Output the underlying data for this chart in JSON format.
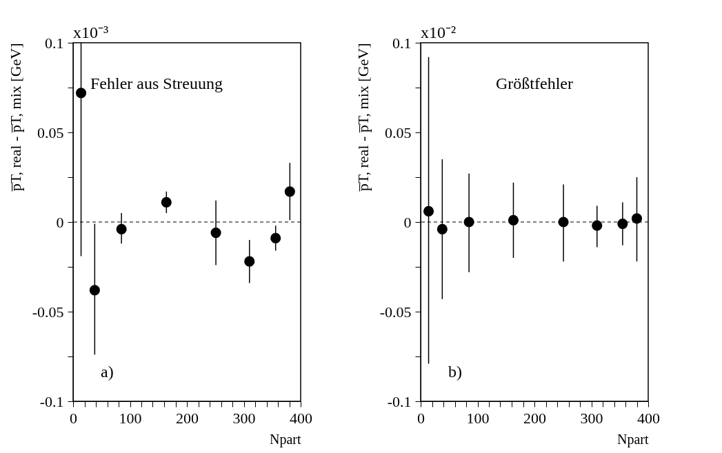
{
  "chart_data": [
    {
      "type": "scatter",
      "xlabel": "Npart",
      "ylabel": "p̅T, real - p̅T, mix [GeV]",
      "annotations": [
        "x10⁻³",
        "Fehler aus Streuung",
        "a)"
      ],
      "x": [
        14,
        38,
        85,
        164,
        251,
        310,
        356,
        381
      ],
      "series": [
        {
          "color": "#000000",
          "values": [
            0.072,
            -0.038,
            -0.004,
            0.011,
            -0.006,
            -0.022,
            -0.009,
            0.017
          ],
          "errors": [
            [
              -0.019,
              0.1
            ],
            [
              -0.074,
              -0.001
            ],
            [
              -0.012,
              0.005
            ],
            [
              0.005,
              0.017
            ],
            [
              -0.024,
              0.012
            ],
            [
              -0.034,
              -0.01
            ],
            [
              -0.016,
              -0.002
            ],
            [
              0.001,
              0.033
            ]
          ]
        }
      ],
      "xlim": [
        0,
        400
      ],
      "ylim": [
        -0.1,
        0.1
      ],
      "xticks": [
        0,
        {
          "value": 20,
          "label": null
        },
        {
          "value": 40,
          "label": null
        },
        {
          "value": 60,
          "label": null
        },
        {
          "value": 80,
          "label": null
        },
        100,
        {
          "value": 120,
          "label": null
        },
        {
          "value": 140,
          "label": null
        },
        {
          "value": 160,
          "label": null
        },
        {
          "value": 180,
          "label": null
        },
        200,
        {
          "value": 220,
          "label": null
        },
        {
          "value": 240,
          "label": null
        },
        {
          "value": 260,
          "label": null
        },
        {
          "value": 280,
          "label": null
        },
        300,
        {
          "value": 320,
          "label": null
        },
        {
          "value": 340,
          "label": null
        },
        {
          "value": 360,
          "label": null
        },
        {
          "value": 380,
          "label": null
        },
        400
      ],
      "yticks": [
        -0.1,
        {
          "value": -0.075,
          "label": null
        },
        -0.05,
        {
          "value": -0.025,
          "label": null
        },
        0,
        {
          "value": 0.025,
          "label": null
        },
        0.05,
        {
          "value": 0.075,
          "label": null
        },
        0.1
      ],
      "ref_lines": [
        {
          "axis": "y",
          "value": 0,
          "line_style": "dashed",
          "color": "#000000"
        }
      ],
      "marker": "circle",
      "grid": false
    },
    {
      "type": "scatter",
      "xlabel": "Npart",
      "ylabel": "p̅T, real - p̅T, mix [GeV]",
      "annotations": [
        "x10⁻²",
        "Größtfehler",
        "b)"
      ],
      "x": [
        14,
        38,
        85,
        163,
        251,
        310,
        355,
        380
      ],
      "series": [
        {
          "color": "#000000",
          "values": [
            0.006,
            -0.004,
            0.0,
            0.001,
            0.0,
            -0.002,
            -0.001,
            0.002
          ],
          "errors": [
            [
              -0.079,
              0.092
            ],
            [
              -0.043,
              0.035
            ],
            [
              -0.028,
              0.027
            ],
            [
              -0.02,
              0.022
            ],
            [
              -0.022,
              0.021
            ],
            [
              -0.014,
              0.009
            ],
            [
              -0.013,
              0.011
            ],
            [
              -0.022,
              0.025
            ]
          ]
        }
      ],
      "xlim": [
        0,
        400
      ],
      "ylim": [
        -0.1,
        0.1
      ],
      "xticks": [
        0,
        {
          "value": 20,
          "label": null
        },
        {
          "value": 40,
          "label": null
        },
        {
          "value": 60,
          "label": null
        },
        {
          "value": 80,
          "label": null
        },
        100,
        {
          "value": 120,
          "label": null
        },
        {
          "value": 140,
          "label": null
        },
        {
          "value": 160,
          "label": null
        },
        {
          "value": 180,
          "label": null
        },
        200,
        {
          "value": 220,
          "label": null
        },
        {
          "value": 240,
          "label": null
        },
        {
          "value": 260,
          "label": null
        },
        {
          "value": 280,
          "label": null
        },
        300,
        {
          "value": 320,
          "label": null
        },
        {
          "value": 340,
          "label": null
        },
        {
          "value": 360,
          "label": null
        },
        {
          "value": 380,
          "label": null
        },
        400
      ],
      "yticks": [
        -0.1,
        {
          "value": -0.075,
          "label": null
        },
        -0.05,
        {
          "value": -0.025,
          "label": null
        },
        0,
        {
          "value": 0.025,
          "label": null
        },
        0.05,
        {
          "value": 0.075,
          "label": null
        },
        0.1
      ],
      "ref_lines": [
        {
          "axis": "y",
          "value": 0,
          "line_style": "dashed",
          "color": "#000000"
        }
      ],
      "marker": "circle",
      "grid": false
    }
  ]
}
